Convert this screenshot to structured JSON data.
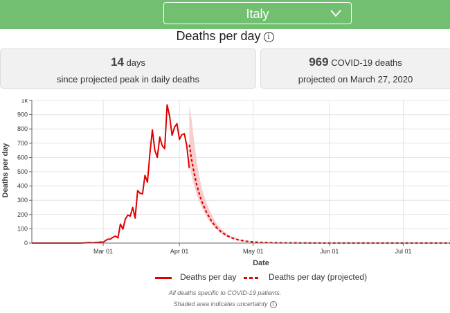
{
  "header": {
    "country": "Italy",
    "title": "Deaths per day",
    "info_icon": "i"
  },
  "cards": [
    {
      "value": "14",
      "unit": "days",
      "text": "since projected peak in daily deaths"
    },
    {
      "value": "969",
      "unit": "COVID-19 deaths",
      "text": "projected on March 27, 2020"
    }
  ],
  "colors": {
    "accent_green": "#72bf72",
    "series": "#e00000",
    "band": "#f7c6c6"
  },
  "chart_data": {
    "type": "line",
    "xlabel": "Date",
    "ylabel": "Deaths per day",
    "ylim": [
      0,
      1000
    ],
    "yticks": [
      0,
      100,
      200,
      300,
      400,
      500,
      600,
      700,
      800,
      900,
      1000
    ],
    "ytick_labels": [
      "0",
      "100",
      "200",
      "300",
      "400",
      "500",
      "600",
      "700",
      "800",
      "900",
      "1k"
    ],
    "x_domain": [
      "2020-02-01",
      "2020-07-20"
    ],
    "xticks": [
      {
        "date": "2020-03-01",
        "label": "Mar 01"
      },
      {
        "date": "2020-04-01",
        "label": "Apr 01"
      },
      {
        "date": "2020-05-01",
        "label": "May 01"
      },
      {
        "date": "2020-06-01",
        "label": "Jun 01"
      },
      {
        "date": "2020-07-01",
        "label": "Jul 01"
      }
    ],
    "grid": true,
    "series": [
      {
        "name": "Deaths per day",
        "style": "solid",
        "points": [
          [
            "2020-02-01",
            0
          ],
          [
            "2020-02-21",
            0
          ],
          [
            "2020-02-22",
            1
          ],
          [
            "2020-02-23",
            2
          ],
          [
            "2020-02-24",
            4
          ],
          [
            "2020-02-25",
            3
          ],
          [
            "2020-02-26",
            2
          ],
          [
            "2020-02-27",
            5
          ],
          [
            "2020-02-28",
            4
          ],
          [
            "2020-02-29",
            8
          ],
          [
            "2020-03-01",
            5
          ],
          [
            "2020-03-02",
            18
          ],
          [
            "2020-03-03",
            27
          ],
          [
            "2020-03-04",
            28
          ],
          [
            "2020-03-05",
            41
          ],
          [
            "2020-03-06",
            49
          ],
          [
            "2020-03-07",
            36
          ],
          [
            "2020-03-08",
            133
          ],
          [
            "2020-03-09",
            97
          ],
          [
            "2020-03-10",
            168
          ],
          [
            "2020-03-11",
            196
          ],
          [
            "2020-03-12",
            189
          ],
          [
            "2020-03-13",
            250
          ],
          [
            "2020-03-14",
            175
          ],
          [
            "2020-03-15",
            368
          ],
          [
            "2020-03-16",
            349
          ],
          [
            "2020-03-17",
            345
          ],
          [
            "2020-03-18",
            475
          ],
          [
            "2020-03-19",
            427
          ],
          [
            "2020-03-20",
            627
          ],
          [
            "2020-03-21",
            793
          ],
          [
            "2020-03-22",
            651
          ],
          [
            "2020-03-23",
            601
          ],
          [
            "2020-03-24",
            743
          ],
          [
            "2020-03-25",
            683
          ],
          [
            "2020-03-26",
            662
          ],
          [
            "2020-03-27",
            969
          ],
          [
            "2020-03-28",
            889
          ],
          [
            "2020-03-29",
            756
          ],
          [
            "2020-03-30",
            812
          ],
          [
            "2020-03-31",
            837
          ],
          [
            "2020-04-01",
            727
          ],
          [
            "2020-04-02",
            760
          ],
          [
            "2020-04-03",
            766
          ],
          [
            "2020-04-04",
            681
          ],
          [
            "2020-04-05",
            525
          ]
        ]
      },
      {
        "name": "Deaths per day (projected)",
        "style": "dashed",
        "points": [
          [
            "2020-04-05",
            690
          ],
          [
            "2020-04-06",
            580
          ],
          [
            "2020-04-07",
            490
          ],
          [
            "2020-04-08",
            410
          ],
          [
            "2020-04-09",
            350
          ],
          [
            "2020-04-10",
            295
          ],
          [
            "2020-04-12",
            215
          ],
          [
            "2020-04-14",
            155
          ],
          [
            "2020-04-16",
            110
          ],
          [
            "2020-04-18",
            78
          ],
          [
            "2020-04-20",
            55
          ],
          [
            "2020-04-22",
            38
          ],
          [
            "2020-04-25",
            22
          ],
          [
            "2020-04-28",
            13
          ],
          [
            "2020-05-01",
            8
          ],
          [
            "2020-05-05",
            4
          ],
          [
            "2020-05-10",
            2
          ],
          [
            "2020-05-20",
            1
          ],
          [
            "2020-06-01",
            0
          ],
          [
            "2020-07-20",
            0
          ]
        ]
      }
    ],
    "uncertainty_band": [
      [
        "2020-04-05",
        560,
        960
      ],
      [
        "2020-04-06",
        470,
        860
      ],
      [
        "2020-04-07",
        400,
        710
      ],
      [
        "2020-04-08",
        340,
        580
      ],
      [
        "2020-04-09",
        295,
        470
      ],
      [
        "2020-04-10",
        255,
        390
      ],
      [
        "2020-04-12",
        185,
        280
      ],
      [
        "2020-04-14",
        135,
        200
      ],
      [
        "2020-04-16",
        95,
        140
      ],
      [
        "2020-04-18",
        66,
        100
      ],
      [
        "2020-04-20",
        46,
        70
      ],
      [
        "2020-04-22",
        32,
        48
      ],
      [
        "2020-04-25",
        18,
        28
      ],
      [
        "2020-04-28",
        10,
        17
      ],
      [
        "2020-05-01",
        6,
        11
      ],
      [
        "2020-05-05",
        3,
        6
      ],
      [
        "2020-05-10",
        1,
        3
      ],
      [
        "2020-05-20",
        0,
        1
      ]
    ]
  },
  "legend": [
    {
      "label": "Deaths per day",
      "style": "solid"
    },
    {
      "label": "Deaths per day (projected)",
      "style": "dashed"
    }
  ],
  "footnotes": {
    "line1": "All deaths specific to COVID-19 patients.",
    "line2": "Shaded area indicates uncertainty"
  }
}
